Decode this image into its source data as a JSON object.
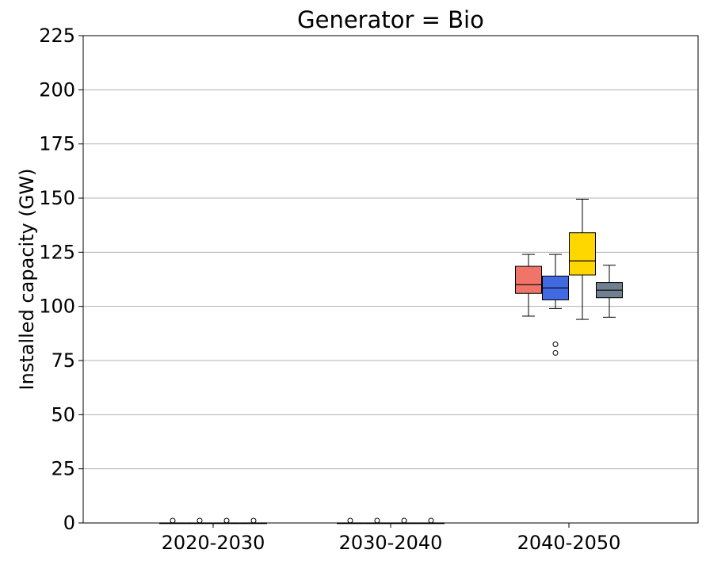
{
  "chart_data": {
    "type": "box",
    "title": "Generator = Bio",
    "xlabel": "",
    "ylabel": "Installed capacity (GW)",
    "ylim": [
      0,
      225
    ],
    "yticks": [
      "0",
      "25",
      "50",
      "75",
      "100",
      "125",
      "150",
      "175",
      "200",
      "225"
    ],
    "categories": [
      "2020-2030",
      "2030-2040",
      "2040-2050"
    ],
    "grid": "y",
    "legend": "none",
    "series": [
      {
        "color": "#f07468",
        "boxes": [
          {
            "whisker_low": 0,
            "q1": 0,
            "median": 0,
            "q3": 0,
            "whisker_high": 0,
            "outliers": [
              0.1
            ]
          },
          {
            "whisker_low": 0,
            "q1": 0,
            "median": 0,
            "q3": 0,
            "whisker_high": 0,
            "outliers": [
              0.1
            ]
          },
          {
            "whisker_low": 95.5,
            "q1": 106,
            "median": 110,
            "q3": 118.5,
            "whisker_high": 124,
            "outliers": []
          }
        ]
      },
      {
        "color": "#4169e1",
        "boxes": [
          {
            "whisker_low": 0,
            "q1": 0,
            "median": 0,
            "q3": 0,
            "whisker_high": 0,
            "outliers": [
              0.1
            ]
          },
          {
            "whisker_low": 0,
            "q1": 0,
            "median": 0,
            "q3": 0,
            "whisker_high": 0,
            "outliers": [
              0.1
            ]
          },
          {
            "whisker_low": 99,
            "q1": 103,
            "median": 108.5,
            "q3": 114,
            "whisker_high": 124,
            "outliers": [
              78.5,
              82.5
            ]
          }
        ]
      },
      {
        "color": "#ffd700",
        "boxes": [
          {
            "whisker_low": 0,
            "q1": 0,
            "median": 0,
            "q3": 0,
            "whisker_high": 0,
            "outliers": [
              0.1
            ]
          },
          {
            "whisker_low": 0,
            "q1": 0,
            "median": 0,
            "q3": 0,
            "whisker_high": 0,
            "outliers": [
              0.1
            ]
          },
          {
            "whisker_low": 94,
            "q1": 114.5,
            "median": 121,
            "q3": 134,
            "whisker_high": 149.5,
            "outliers": []
          }
        ]
      },
      {
        "color": "#708090",
        "boxes": [
          {
            "whisker_low": 0,
            "q1": 0,
            "median": 0,
            "q3": 0,
            "whisker_high": 0,
            "outliers": [
              0.1
            ]
          },
          {
            "whisker_low": 0,
            "q1": 0,
            "median": 0,
            "q3": 0,
            "whisker_high": 0,
            "outliers": [
              0.1
            ]
          },
          {
            "whisker_low": 95,
            "q1": 104,
            "median": 107.5,
            "q3": 111,
            "whisker_high": 119,
            "outliers": []
          }
        ]
      }
    ]
  }
}
